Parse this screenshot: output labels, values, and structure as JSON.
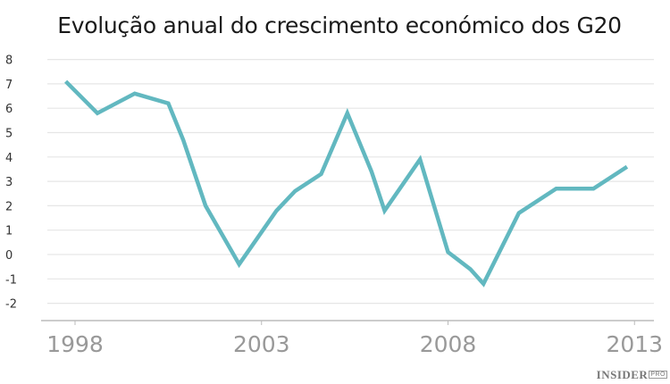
{
  "chart_data": {
    "type": "line",
    "title": "Evolução anual do crescimento económico dos G20",
    "xlabel": "",
    "ylabel": "",
    "ylim": [
      -2,
      8
    ],
    "yticks": [
      8,
      7,
      6,
      5,
      4,
      3,
      2,
      1,
      0,
      -1,
      -2
    ],
    "xticks": [
      "1998",
      "2003",
      "2008",
      "2013"
    ],
    "grid": true,
    "legend": null,
    "line_color": "#62b8c0",
    "series": [
      {
        "name": "G20",
        "x": [
          1997.75,
          1998.6,
          1999.6,
          2000.5,
          2000.9,
          2001.5,
          2002.4,
          2003.4,
          2003.9,
          2004.6,
          2005.3,
          2005.95,
          2006.3,
          2007.25,
          2008.0,
          2008.6,
          2008.95,
          2009.9,
          2010.9,
          2011.9,
          2012.8
        ],
        "values": [
          7.1,
          5.8,
          6.6,
          6.2,
          4.7,
          2.0,
          -0.4,
          1.8,
          2.6,
          3.3,
          5.8,
          3.4,
          1.8,
          3.9,
          0.1,
          -0.6,
          -1.2,
          1.7,
          2.7,
          2.7,
          3.6
        ]
      }
    ]
  },
  "title": "Evolução anual do crescimento económico dos G20",
  "logo": {
    "main": "INSIDER",
    "sub": "PRO"
  }
}
